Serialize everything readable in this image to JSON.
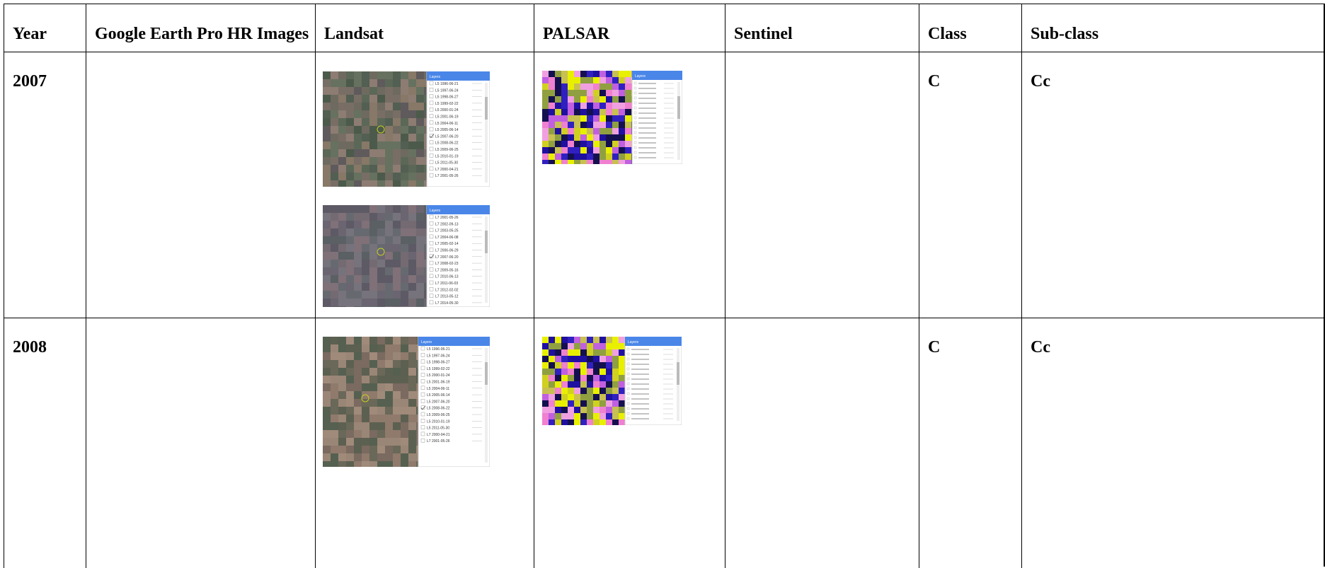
{
  "table": {
    "header": [
      "Year",
      "Google Earth Pro HR Images",
      "Landsat",
      "PALSAR",
      "Sentinel",
      "Class",
      "Sub-class"
    ],
    "rows": [
      {
        "year": "2007",
        "class": "C",
        "subclass": "Cc",
        "landsat": [
          {
            "title": "Layers",
            "items": [
              {
                "label": "L5 1996-06-21"
              },
              {
                "label": "L5 1997-06-24"
              },
              {
                "label": "L5 1998-06-27"
              },
              {
                "label": "L5 1999-02-22"
              },
              {
                "label": "L5 2000-01-24"
              },
              {
                "label": "L5 2001-06-19"
              },
              {
                "label": "L5 2004-06-11"
              },
              {
                "label": "L5 2005-06-14"
              },
              {
                "label": "L5 2007-06-20",
                "checked": true
              },
              {
                "label": "L5 2008-06-22"
              },
              {
                "label": "L5 2009-06-25"
              },
              {
                "label": "L5 2010-01-19"
              },
              {
                "label": "L5 2011-05-30"
              },
              {
                "label": "L7 2000-04-21"
              },
              {
                "label": "L7 2001-05-26"
              }
            ]
          },
          {
            "title": "Layers",
            "items": [
              {
                "label": "L7 2001-05-26"
              },
              {
                "label": "L7 2002-09-13"
              },
              {
                "label": "L7 2003-05-25"
              },
              {
                "label": "L7 2004-06-08"
              },
              {
                "label": "L7 2005-02-14"
              },
              {
                "label": "L7 2006-06-29"
              },
              {
                "label": "L7 2007-06-20",
                "checked": true
              },
              {
                "label": "L7 2008-02-23"
              },
              {
                "label": "L7 2009-05-16"
              },
              {
                "label": "L7 2010-06-13"
              },
              {
                "label": "L7 2011-06-03"
              },
              {
                "label": "L7 2012-02-02"
              },
              {
                "label": "L7 2013-05-12"
              },
              {
                "label": "L7 2014-05-30"
              }
            ]
          }
        ],
        "palsar": [
          {
            "title": "Layers"
          }
        ]
      },
      {
        "year": "2008",
        "class": "C",
        "subclass": "Cc",
        "landsat": [
          {
            "title": "Layers",
            "items": [
              {
                "label": "L5 1996-06-21"
              },
              {
                "label": "L5 1997-06-24"
              },
              {
                "label": "L5 1998-06-27"
              },
              {
                "label": "L5 1999-02-22"
              },
              {
                "label": "L5 2000-01-24"
              },
              {
                "label": "L5 2001-06-19"
              },
              {
                "label": "L5 2004-06-11"
              },
              {
                "label": "L5 2005-06-14"
              },
              {
                "label": "L5 2007-06-20"
              },
              {
                "label": "L5 2008-06-22",
                "checked": true
              },
              {
                "label": "L5 2009-06-25"
              },
              {
                "label": "L5 2010-01-19"
              },
              {
                "label": "L5 2011-05-30"
              },
              {
                "label": "L7 2000-04-21"
              },
              {
                "label": "L7 2001-05-26"
              }
            ]
          }
        ],
        "palsar": [
          {
            "title": "Layers"
          }
        ]
      }
    ]
  }
}
